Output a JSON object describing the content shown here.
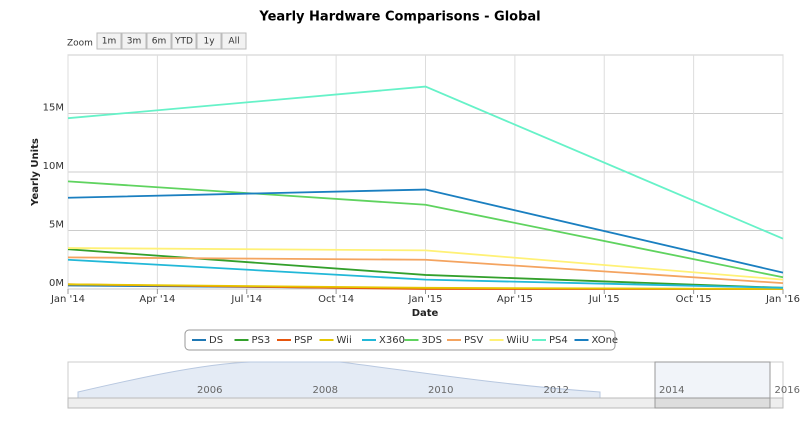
{
  "chart_data": {
    "type": "line",
    "title": "Yearly Hardware Comparisons - Global",
    "x_label": "Date",
    "y_label": "Yearly Units",
    "range_selector": {
      "label": "Zoom",
      "buttons": [
        "1m",
        "3m",
        "6m",
        "YTD",
        "1y",
        "All"
      ]
    },
    "x": [
      "2014-01",
      "2015-01",
      "2016-01"
    ],
    "xlim": [
      "2014-01",
      "2016-01"
    ],
    "xticks": [
      {
        "value": "2014-01",
        "label": "Jan '14"
      },
      {
        "value": "2014-04",
        "label": "Apr '14"
      },
      {
        "value": "2014-07",
        "label": "Jul '14"
      },
      {
        "value": "2014-10",
        "label": "Oct '14"
      },
      {
        "value": "2015-01",
        "label": "Jan '15"
      },
      {
        "value": "2015-04",
        "label": "Apr '15"
      },
      {
        "value": "2015-07",
        "label": "Jul '15"
      },
      {
        "value": "2015-10",
        "label": "Oct '15"
      },
      {
        "value": "2016-01",
        "label": "Jan '16"
      }
    ],
    "ylim": [
      0,
      20000000
    ],
    "yticks": [
      {
        "value": 0,
        "label": "0M"
      },
      {
        "value": 5000000,
        "label": "5M"
      },
      {
        "value": 10000000,
        "label": "10M"
      },
      {
        "value": 15000000,
        "label": "15M"
      }
    ],
    "grid": true,
    "series": [
      {
        "name": "DS",
        "color": "#1f78b4",
        "values": [
          300000,
          50000,
          0
        ]
      },
      {
        "name": "PS3",
        "color": "#33a02c",
        "values": [
          3400000,
          1200000,
          100000
        ]
      },
      {
        "name": "PSP",
        "color": "#e6550d",
        "values": [
          400000,
          0,
          0
        ]
      },
      {
        "name": "Wii",
        "color": "#e6c700",
        "values": [
          400000,
          100000,
          0
        ]
      },
      {
        "name": "X360",
        "color": "#22b8d8",
        "values": [
          2500000,
          800000,
          100000
        ]
      },
      {
        "name": "3DS",
        "color": "#5fd35f",
        "values": [
          9200000,
          7200000,
          1000000
        ]
      },
      {
        "name": "PSV",
        "color": "#f4a460",
        "values": [
          2700000,
          2500000,
          500000
        ]
      },
      {
        "name": "WiiU",
        "color": "#fff176",
        "values": [
          3500000,
          3300000,
          800000
        ]
      },
      {
        "name": "PS4",
        "color": "#66f2c8",
        "values": [
          14600000,
          17300000,
          4300000
        ]
      },
      {
        "name": "XOne",
        "color": "#1a7fc0",
        "values": [
          7800000,
          8500000,
          1400000
        ]
      }
    ],
    "navigator": {
      "labels": [
        "2006",
        "2008",
        "2010",
        "2012",
        "2014",
        "2016"
      ]
    }
  }
}
